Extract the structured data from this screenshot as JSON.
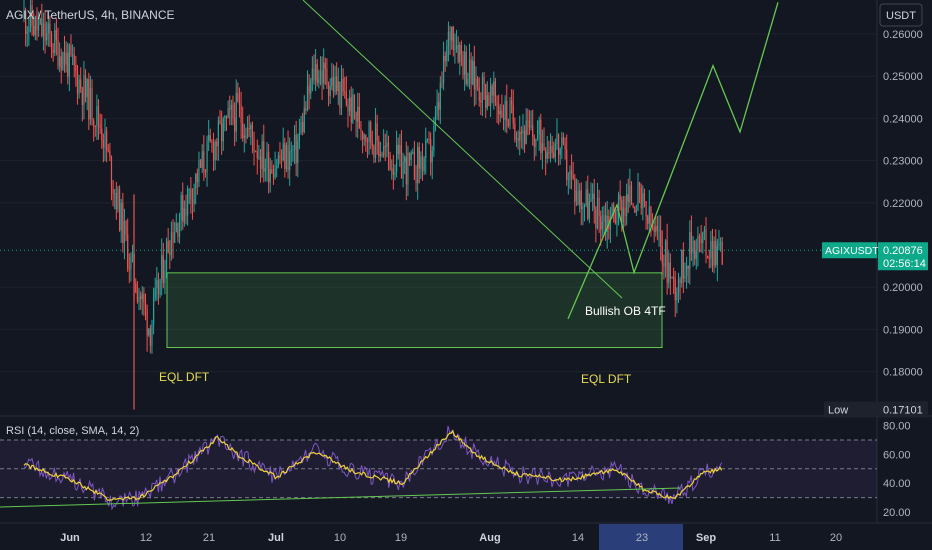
{
  "chart_data": {
    "type": "candlestick",
    "title": "AGIX / TetherUS, 4h, BINANCE",
    "quote_currency": "USDT",
    "y_ticks": [
      0.26,
      0.25,
      0.24,
      0.23,
      0.22,
      0.2,
      0.19,
      0.18
    ],
    "ylim": [
      0.1705,
      0.2675
    ],
    "x_ticks": [
      "Jun",
      "12",
      "21",
      "Jul",
      "10",
      "19",
      "Aug",
      "14",
      "23",
      "Sep",
      "11",
      "20"
    ],
    "x_highlight": [
      "Aug",
      "14",
      "23"
    ],
    "last_price": {
      "symbol": "AGIXUSDT",
      "value": "0.20876",
      "countdown": "02:56:14"
    },
    "low_marker": {
      "label": "Low",
      "value": "0.17101"
    },
    "price_path_waypoints": [
      {
        "t": "May 31",
        "price": 0.264
      },
      {
        "t": "Jun 3",
        "price": 0.258
      },
      {
        "t": "Jun 5",
        "price": 0.252
      },
      {
        "t": "Jun 8",
        "price": 0.238
      },
      {
        "t": "Jun 11",
        "price": 0.205
      },
      {
        "t": "Jun 12",
        "price": 0.198
      },
      {
        "t": "Jun 13",
        "price": 0.19
      },
      {
        "t": "Jun 15",
        "price": 0.212
      },
      {
        "t": "Jun 19",
        "price": 0.232
      },
      {
        "t": "Jun 22",
        "price": 0.242
      },
      {
        "t": "Jun 25",
        "price": 0.229
      },
      {
        "t": "Jun 28",
        "price": 0.232
      },
      {
        "t": "Jun 30",
        "price": 0.252
      },
      {
        "t": "Jul 2",
        "price": 0.248
      },
      {
        "t": "Jul 5",
        "price": 0.238
      },
      {
        "t": "Jul 8",
        "price": 0.23
      },
      {
        "t": "Jul 10",
        "price": 0.228
      },
      {
        "t": "Jul 12",
        "price": 0.232
      },
      {
        "t": "Jul 14",
        "price": 0.262
      },
      {
        "t": "Jul 16",
        "price": 0.25
      },
      {
        "t": "Jul 19",
        "price": 0.243
      },
      {
        "t": "Jul 22",
        "price": 0.236
      },
      {
        "t": "Jul 25",
        "price": 0.234
      },
      {
        "t": "Jul 27",
        "price": 0.222
      },
      {
        "t": "Jul 30",
        "price": 0.216
      },
      {
        "t": "Aug 2",
        "price": 0.222
      },
      {
        "t": "Aug 5",
        "price": 0.208
      },
      {
        "t": "Aug 6",
        "price": 0.2
      },
      {
        "t": "Aug 8",
        "price": 0.211
      },
      {
        "t": "Aug 11",
        "price": 0.2088
      }
    ],
    "annotations": {
      "order_block": {
        "label": "Bullish OB 4TF",
        "top": 0.2034,
        "bottom": 0.1857
      },
      "eql_labels": [
        "EQL DFT",
        "EQL DFT"
      ],
      "projection_path": [
        0.1925,
        0.2195,
        0.2035,
        0.2525,
        0.2368,
        0.2675
      ]
    },
    "rsi": {
      "label": "RSI (14, close, SMA, 14, 2)",
      "y_ticks": [
        80.0,
        60.0,
        40.0,
        20.0
      ],
      "upper_band": 70,
      "mid_band": 50,
      "lower_band": 30,
      "ylim": [
        17,
        87
      ],
      "waypoints": [
        {
          "t": "May 31",
          "rsi": 53
        },
        {
          "t": "Jun 5",
          "rsi": 42
        },
        {
          "t": "Jun 9",
          "rsi": 28
        },
        {
          "t": "Jun 12",
          "rsi": 30
        },
        {
          "t": "Jun 16",
          "rsi": 48
        },
        {
          "t": "Jun 20",
          "rsi": 72
        },
        {
          "t": "Jun 22",
          "rsi": 60
        },
        {
          "t": "Jun 26",
          "rsi": 44
        },
        {
          "t": "Jun 30",
          "rsi": 62
        },
        {
          "t": "Jul 4",
          "rsi": 48
        },
        {
          "t": "Jul 9",
          "rsi": 40
        },
        {
          "t": "Jul 14",
          "rsi": 76
        },
        {
          "t": "Jul 17",
          "rsi": 58
        },
        {
          "t": "Jul 21",
          "rsi": 46
        },
        {
          "t": "Jul 26",
          "rsi": 42
        },
        {
          "t": "Jul 31",
          "rsi": 50
        },
        {
          "t": "Aug 3",
          "rsi": 35
        },
        {
          "t": "Aug 6",
          "rsi": 29
        },
        {
          "t": "Aug 9",
          "rsi": 47
        },
        {
          "t": "Aug 11",
          "rsi": 50
        }
      ]
    }
  },
  "colors": {
    "background": "#131722",
    "up": "#26a69a",
    "down": "#ef5350",
    "trend": "#64c850",
    "label_yellow": "#e8dc50",
    "rsi_line": "#7e57c2",
    "rsi_ma": "#f0d23c",
    "axis_highlight": "#2a3f7a",
    "price_badge": "#0ca98a"
  }
}
